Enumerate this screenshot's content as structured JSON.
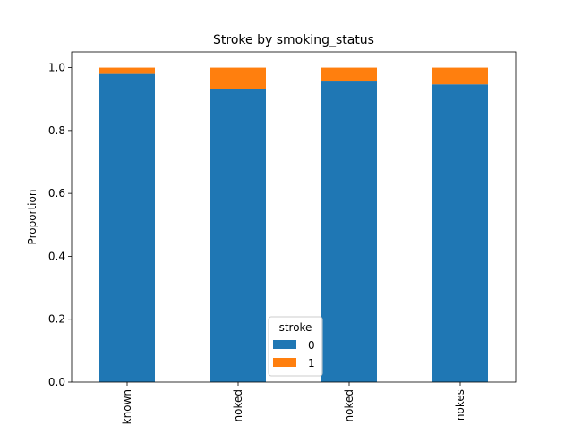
{
  "chart_data": {
    "type": "bar",
    "stacked": true,
    "title": "Stroke by smoking_status",
    "xlabel": "",
    "ylabel": "Proportion",
    "ylim": [
      0,
      1.05
    ],
    "yticks": [
      0.0,
      0.2,
      0.4,
      0.6,
      0.8,
      1.0
    ],
    "ytick_labels": [
      "0.0",
      "0.2",
      "0.4",
      "0.6",
      "0.8",
      "1.0"
    ],
    "categories": [
      "Unknown",
      "formerly smoked",
      "never smoked",
      "smokes"
    ],
    "category_labels_visible": [
      "known",
      "noked",
      "noked",
      "nokes"
    ],
    "series": [
      {
        "name": "0",
        "color": "#1f77b4",
        "values": [
          0.98,
          0.932,
          0.956,
          0.947
        ]
      },
      {
        "name": "1",
        "color": "#ff7f0e",
        "values": [
          0.02,
          0.068,
          0.044,
          0.053
        ]
      }
    ],
    "legend": {
      "title": "stroke",
      "placement": "bottom-center"
    },
    "grid": false
  }
}
